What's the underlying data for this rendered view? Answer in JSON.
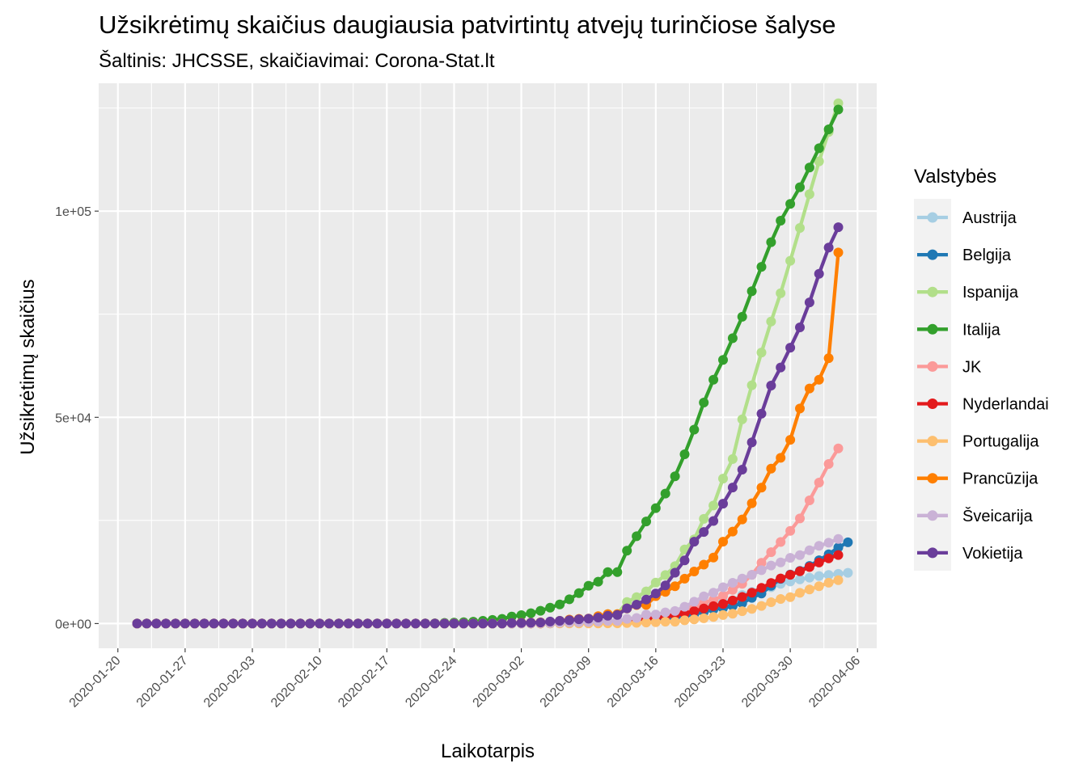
{
  "chart_data": {
    "type": "line",
    "title": "Užsikrėtimų skaičius daugiausia patvirtintų atvejų turinčiose šalyse",
    "subtitle": "Šaltinis: JHCSSE, skaičiavimai: Corona-Stat.lt",
    "xlabel": "Laikotarpis",
    "ylabel": "Užsikrėtimų skaičius",
    "x_start": "2020-01-22",
    "x_end": "2020-04-05",
    "xlim": [
      "2020-01-18",
      "2020-04-08"
    ],
    "ylim": [
      -6000,
      131000
    ],
    "x_ticks": [
      "2020-01-20",
      "2020-01-27",
      "2020-02-03",
      "2020-02-10",
      "2020-02-17",
      "2020-02-24",
      "2020-03-02",
      "2020-03-09",
      "2020-03-16",
      "2020-03-23",
      "2020-03-30",
      "2020-04-06"
    ],
    "y_ticks": [
      {
        "value": 0,
        "label": "0e+00"
      },
      {
        "value": 50000,
        "label": "5e+04"
      },
      {
        "value": 100000,
        "label": "1e+05"
      }
    ],
    "grid": true,
    "legend_title": "Valstybės",
    "legend_position": "right",
    "series": [
      {
        "name": "Austrija",
        "color": "#a6cee3",
        "values_from": "2020-03-01",
        "values": [
          10,
          18,
          29,
          41,
          55,
          79,
          104,
          131,
          182,
          246,
          302,
          504,
          655,
          860,
          1016,
          1332,
          1646,
          2013,
          2388,
          3024,
          3631,
          4486,
          5283,
          5588,
          6909,
          7657,
          8271,
          8788,
          9618,
          10180,
          10711,
          11129,
          11524,
          11781,
          12051,
          12297
        ]
      },
      {
        "name": "Belgija",
        "color": "#1f78b4",
        "values_from": "2020-03-01",
        "values": [
          2,
          8,
          13,
          23,
          50,
          109,
          169,
          200,
          239,
          267,
          314,
          314,
          559,
          689,
          886,
          1058,
          1243,
          1486,
          1795,
          2257,
          2815,
          3401,
          3743,
          4269,
          4937,
          6235,
          7284,
          9134,
          10836,
          11899,
          12775,
          13964,
          15348,
          16770,
          18431,
          19691
        ]
      },
      {
        "name": "Ispanija",
        "color": "#b2df8a",
        "values_from": "2020-03-01",
        "values": [
          84,
          120,
          165,
          222,
          259,
          400,
          500,
          673,
          1073,
          1695,
          2277,
          2277,
          5232,
          6391,
          7798,
          9942,
          11748,
          13910,
          17963,
          20410,
          25374,
          28603,
          35136,
          39885,
          49515,
          57786,
          65719,
          73235,
          80110,
          87956,
          95923,
          104118,
          112065,
          119199,
          126168
        ]
      },
      {
        "name": "Italija",
        "color": "#33a02c",
        "values_from": "2020-02-21",
        "values": [
          20,
          62,
          155,
          229,
          322,
          453,
          655,
          888,
          1128,
          1694,
          2036,
          2502,
          3089,
          3858,
          4636,
          5883,
          7375,
          9172,
          10149,
          12462,
          12462,
          17660,
          21157,
          24747,
          27980,
          31506,
          35713,
          41035,
          47021,
          53578,
          59138,
          63927,
          69176,
          74386,
          80589,
          86498,
          92472,
          97689,
          101739,
          105792,
          110574,
          115242,
          119827,
          124632
        ]
      },
      {
        "name": "JK",
        "color": "#fb9a99",
        "values_from": "2020-03-01",
        "values": [
          36,
          40,
          51,
          86,
          116,
          164,
          207,
          274,
          322,
          384,
          459,
          459,
          802,
          1144,
          1145,
          1551,
          1960,
          2642,
          2716,
          4014,
          5067,
          5745,
          6726,
          8164,
          9640,
          11812,
          14745,
          17312,
          19780,
          22453,
          25481,
          29865,
          34173,
          38689,
          42477
        ]
      },
      {
        "name": "Nyderlandai",
        "color": "#e31a1c",
        "values_from": "2020-03-01",
        "values": [
          10,
          18,
          24,
          38,
          82,
          128,
          188,
          265,
          321,
          382,
          503,
          503,
          806,
          962,
          1138,
          1416,
          1711,
          2058,
          2467,
          3003,
          3640,
          4216,
          4764,
          5580,
          6438,
          7468,
          8647,
          9819,
          10930,
          11817,
          12667,
          13696,
          14788,
          15821,
          16627
        ]
      },
      {
        "name": "Portugalija",
        "color": "#fdbf6f",
        "values_from": "2020-03-01",
        "values": [
          0,
          2,
          2,
          5,
          8,
          13,
          20,
          30,
          30,
          41,
          59,
          59,
          112,
          169,
          245,
          331,
          448,
          448,
          785,
          1020,
          1280,
          1600,
          2060,
          2362,
          2995,
          3544,
          4268,
          5170,
          5962,
          6408,
          7443,
          8251,
          9034,
          9886,
          10524
        ]
      },
      {
        "name": "Prancūzija",
        "color": "#ff7f00",
        "values_from": "2020-03-01",
        "values": [
          130,
          191,
          204,
          288,
          380,
          656,
          957,
          1134,
          1217,
          1792,
          2289,
          2289,
          3672,
          4480,
          4513,
          6650,
          7652,
          9043,
          10871,
          12612,
          14282,
          16018,
          19856,
          22304,
          25233,
          29155,
          32964,
          37575,
          40174,
          44550,
          52128,
          56989,
          59105,
          64338,
          89953
        ]
      },
      {
        "name": "Šveicarija",
        "color": "#cab2d6",
        "values_from": "2020-03-01",
        "values": [
          27,
          42,
          56,
          90,
          114,
          214,
          268,
          337,
          374,
          491,
          652,
          652,
          1139,
          1359,
          2200,
          2200,
          2700,
          3028,
          4075,
          5294,
          6575,
          7474,
          8795,
          9877,
          10897,
          11811,
          12928,
          14076,
          14829,
          15922,
          16605,
          17768,
          18827,
          19606,
          20505
        ]
      },
      {
        "name": "Vokietija",
        "color": "#6a3d9a",
        "values_from": "2020-03-01",
        "values": [
          130,
          159,
          196,
          262,
          482,
          670,
          799,
          1040,
          1176,
          1457,
          1908,
          2078,
          3675,
          4585,
          5795,
          7272,
          9257,
          12327,
          15320,
          19848,
          22213,
          24873,
          29056,
          32986,
          37323,
          43938,
          50871,
          57695,
          62095,
          66885,
          71808,
          77872,
          84794,
          91159,
          96092
        ]
      }
    ]
  }
}
